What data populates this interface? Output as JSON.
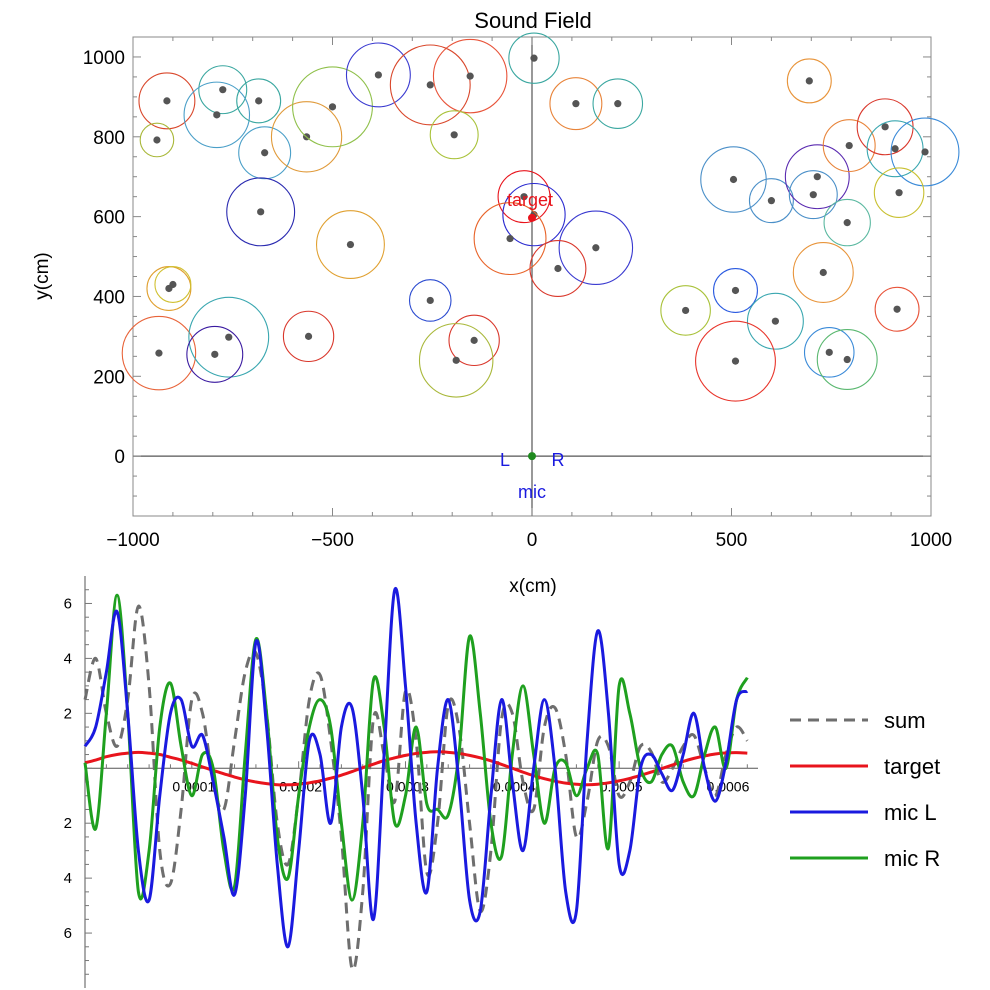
{
  "chart_data": [
    {
      "type": "scatter",
      "title": "Sound Field",
      "xlabel": "x(cm)",
      "ylabel": "y(cm)",
      "xlim": [
        -1000,
        1000
      ],
      "ylim": [
        -150,
        1050
      ],
      "xticks": [
        -1000,
        -500,
        0,
        500,
        1000
      ],
      "yticks": [
        0,
        200,
        400,
        600,
        800,
        1000
      ],
      "tick_labels_x": [
        "−1000",
        "−500",
        "0",
        "500",
        "1000"
      ],
      "tick_labels_y": [
        "0",
        "200",
        "400",
        "600",
        "800",
        "1000"
      ],
      "grid": false,
      "target": {
        "label": "target",
        "x": 0,
        "y": 597,
        "color": "#e8141c"
      },
      "mics": {
        "label": "mic",
        "left_label": "L",
        "right_label": "R",
        "x": 0,
        "y": 0,
        "color": "#1a1adf",
        "dot_color": "#1f8a1f"
      },
      "sources": [
        {
          "x": -915,
          "y": 890,
          "r": 70,
          "color": "#d9472b"
        },
        {
          "x": -940,
          "y": 792,
          "r": 42,
          "color": "#a9b83a"
        },
        {
          "x": -775,
          "y": 918,
          "r": 60,
          "color": "#3aa7a0"
        },
        {
          "x": -790,
          "y": 855,
          "r": 82,
          "color": "#4a9fc8"
        },
        {
          "x": -685,
          "y": 890,
          "r": 55,
          "color": "#3aa7a0"
        },
        {
          "x": -670,
          "y": 760,
          "r": 65,
          "color": "#4a9fc8"
        },
        {
          "x": -565,
          "y": 800,
          "r": 88,
          "color": "#e09a3a"
        },
        {
          "x": -500,
          "y": 875,
          "r": 100,
          "color": "#8fc04a"
        },
        {
          "x": -385,
          "y": 955,
          "r": 80,
          "color": "#3a3ad0"
        },
        {
          "x": -255,
          "y": 930,
          "r": 100,
          "color": "#d9472b"
        },
        {
          "x": -155,
          "y": 952,
          "r": 92,
          "color": "#e8543a"
        },
        {
          "x": -195,
          "y": 805,
          "r": 60,
          "color": "#a9c23a"
        },
        {
          "x": 5,
          "y": 997,
          "r": 63,
          "color": "#3aa7a0"
        },
        {
          "x": 110,
          "y": 883,
          "r": 65,
          "color": "#e8843a"
        },
        {
          "x": 215,
          "y": 883,
          "r": 62,
          "color": "#3aa7a0"
        },
        {
          "x": -680,
          "y": 612,
          "r": 85,
          "color": "#2a2ab0"
        },
        {
          "x": -455,
          "y": 530,
          "r": 85,
          "color": "#e0a030"
        },
        {
          "x": -20,
          "y": 650,
          "r": 65,
          "color": "#e8141c"
        },
        {
          "x": 5,
          "y": 605,
          "r": 78,
          "color": "#2a2ad0"
        },
        {
          "x": -55,
          "y": 545,
          "r": 90,
          "color": "#e8642a"
        },
        {
          "x": 160,
          "y": 522,
          "r": 92,
          "color": "#3a3ad0"
        },
        {
          "x": 65,
          "y": 470,
          "r": 70,
          "color": "#d9372b"
        },
        {
          "x": -910,
          "y": 420,
          "r": 55,
          "color": "#e0a030"
        },
        {
          "x": -900,
          "y": 430,
          "r": 45,
          "color": "#d0c030"
        },
        {
          "x": -255,
          "y": 390,
          "r": 52,
          "color": "#2a4ad0"
        },
        {
          "x": -935,
          "y": 258,
          "r": 92,
          "color": "#e8643a"
        },
        {
          "x": -760,
          "y": 298,
          "r": 100,
          "color": "#3aa7b0"
        },
        {
          "x": -795,
          "y": 255,
          "r": 70,
          "color": "#3a1aa0"
        },
        {
          "x": -560,
          "y": 300,
          "r": 63,
          "color": "#d9372b"
        },
        {
          "x": -145,
          "y": 290,
          "r": 63,
          "color": "#d9372b"
        },
        {
          "x": -190,
          "y": 240,
          "r": 92,
          "color": "#a9b83a"
        },
        {
          "x": 505,
          "y": 693,
          "r": 82,
          "color": "#4a8fc8"
        },
        {
          "x": 600,
          "y": 640,
          "r": 55,
          "color": "#4a8fc8"
        },
        {
          "x": 695,
          "y": 940,
          "r": 55,
          "color": "#e8943a"
        },
        {
          "x": 715,
          "y": 700,
          "r": 80,
          "color": "#5a2ab0"
        },
        {
          "x": 705,
          "y": 655,
          "r": 60,
          "color": "#4a8fc8"
        },
        {
          "x": 795,
          "y": 778,
          "r": 65,
          "color": "#e8843a"
        },
        {
          "x": 885,
          "y": 825,
          "r": 70,
          "color": "#d9372b"
        },
        {
          "x": 910,
          "y": 770,
          "r": 70,
          "color": "#3aa7b0"
        },
        {
          "x": 985,
          "y": 762,
          "r": 85,
          "color": "#3a8ad8"
        },
        {
          "x": 920,
          "y": 660,
          "r": 62,
          "color": "#c8c030"
        },
        {
          "x": 790,
          "y": 585,
          "r": 58,
          "color": "#5ab8a0"
        },
        {
          "x": 730,
          "y": 460,
          "r": 75,
          "color": "#e8943a"
        },
        {
          "x": 510,
          "y": 415,
          "r": 55,
          "color": "#2a5ae0"
        },
        {
          "x": 385,
          "y": 365,
          "r": 62,
          "color": "#a9c23a"
        },
        {
          "x": 610,
          "y": 338,
          "r": 70,
          "color": "#3aa7b0"
        },
        {
          "x": 915,
          "y": 368,
          "r": 55,
          "color": "#e8543a"
        },
        {
          "x": 510,
          "y": 238,
          "r": 100,
          "color": "#e8342a"
        },
        {
          "x": 745,
          "y": 260,
          "r": 62,
          "color": "#3a8ad8"
        },
        {
          "x": 790,
          "y": 242,
          "r": 75,
          "color": "#5ab870"
        }
      ]
    },
    {
      "type": "line",
      "title": "",
      "xlabel": "",
      "ylabel": "",
      "xlim": [
        0,
        0.00063
      ],
      "ylim": [
        -8,
        7
      ],
      "xticks": [
        0.0001,
        0.0002,
        0.0003,
        0.0004,
        0.0005,
        0.0006
      ],
      "yticks": [
        -6,
        -4,
        -2,
        2,
        4,
        6
      ],
      "tick_labels_x": [
        "0.0001",
        "0.0002",
        "0.0003",
        "0.0004",
        "0.0005",
        "0.0006"
      ],
      "tick_labels_y": [
        "6",
        "4",
        "2",
        "2",
        "4",
        "6"
      ],
      "legend": "right",
      "x": [
        0,
        1e-05,
        2e-05,
        3e-05,
        4e-05,
        5e-05,
        6e-05,
        7e-05,
        8e-05,
        9e-05,
        0.0001,
        0.00011,
        0.00012,
        0.00013,
        0.00014,
        0.00015,
        0.00016,
        0.00017,
        0.00018,
        0.00019,
        0.0002,
        0.00021,
        0.00022,
        0.00023,
        0.00024,
        0.00025,
        0.00026,
        0.00027,
        0.00028,
        0.00029,
        0.0003,
        0.00031,
        0.00032,
        0.00033,
        0.00034,
        0.00035,
        0.00036,
        0.00037,
        0.00038,
        0.00039,
        0.0004,
        0.00041,
        0.00042,
        0.00043,
        0.00044,
        0.00045,
        0.00046,
        0.00047,
        0.00048,
        0.00049,
        0.0005,
        0.00051,
        0.00052,
        0.00053,
        0.00054,
        0.00055,
        0.00056,
        0.00057,
        0.00058,
        0.00059,
        0.0006,
        0.00061,
        0.00062
      ],
      "series": [
        {
          "name": "sum",
          "color": "#6e6e6e",
          "dash": true,
          "values": [
            2.5,
            4.0,
            2.0,
            0.8,
            2.5,
            5.9,
            3.0,
            -3.0,
            -4.2,
            -1.5,
            2.5,
            2.0,
            -0.5,
            -1.5,
            1.0,
            3.5,
            4.2,
            2.0,
            -2.0,
            -3.5,
            -1.0,
            2.5,
            3.4,
            1.0,
            -2.5,
            -7.3,
            -4.5,
            1.8,
            0.5,
            -1.2,
            2.8,
            1.0,
            -3.8,
            -2.0,
            2.3,
            1.5,
            -2.0,
            -5.2,
            -3.0,
            1.8,
            2.0,
            -0.5,
            -1.5,
            1.5,
            2.2,
            0.5,
            -2.5,
            -1.2,
            1.0,
            0.8,
            -1.0,
            -0.5,
            0.8,
            0.6,
            -0.5,
            0.0,
            0.8,
            1.2,
            0.0,
            -1.0,
            0.5,
            1.5,
            1.0
          ]
        },
        {
          "name": "target",
          "color": "#e8141c",
          "dash": false,
          "values": [
            0.2,
            0.3,
            0.42,
            0.5,
            0.55,
            0.58,
            0.55,
            0.5,
            0.4,
            0.3,
            0.18,
            0.05,
            -0.08,
            -0.2,
            -0.32,
            -0.42,
            -0.5,
            -0.56,
            -0.6,
            -0.6,
            -0.58,
            -0.53,
            -0.46,
            -0.36,
            -0.25,
            -0.12,
            0.02,
            0.15,
            0.28,
            0.38,
            0.47,
            0.54,
            0.58,
            0.6,
            0.58,
            0.54,
            0.47,
            0.38,
            0.27,
            0.14,
            0.0,
            -0.14,
            -0.27,
            -0.38,
            -0.47,
            -0.54,
            -0.58,
            -0.6,
            -0.58,
            -0.53,
            -0.46,
            -0.37,
            -0.26,
            -0.14,
            -0.01,
            0.12,
            0.25,
            0.36,
            0.45,
            0.52,
            0.56,
            0.57,
            0.55
          ]
        },
        {
          "name": "mic L",
          "color": "#1a1adf",
          "dash": false,
          "values": [
            0.8,
            1.5,
            3.5,
            5.7,
            2.0,
            -3.0,
            -4.8,
            -1.0,
            2.0,
            2.5,
            0.8,
            1.2,
            -0.5,
            -2.5,
            -4.6,
            -1.0,
            4.6,
            1.5,
            -3.5,
            -6.5,
            -3.0,
            1.0,
            0.5,
            -2.0,
            1.5,
            2.2,
            -1.0,
            -5.5,
            0.5,
            6.5,
            3.0,
            -2.0,
            -4.5,
            0.0,
            2.5,
            -0.5,
            -4.8,
            -5.2,
            -1.0,
            2.5,
            -0.5,
            -3.0,
            0.0,
            2.5,
            0.0,
            -4.5,
            -5.2,
            1.0,
            5.0,
            2.0,
            -3.5,
            -3.0,
            0.0,
            0.5,
            -0.2,
            -0.8,
            0.5,
            2.0,
            0.0,
            -1.2,
            0.2,
            2.5,
            2.8
          ]
        },
        {
          "name": "mic R",
          "color": "#1fa01f",
          "dash": false,
          "values": [
            0.2,
            -2.2,
            2.0,
            6.3,
            2.0,
            -4.5,
            -3.0,
            1.5,
            3.1,
            0.8,
            -1.0,
            0.5,
            0.0,
            -3.0,
            -4.3,
            0.5,
            4.7,
            2.0,
            -2.5,
            -4.0,
            -1.0,
            1.5,
            2.5,
            1.5,
            -2.0,
            -4.8,
            -2.0,
            3.2,
            1.5,
            -2.0,
            -1.0,
            1.5,
            -1.3,
            -1.5,
            -1.7,
            0.5,
            4.8,
            2.0,
            -2.0,
            -3.2,
            0.5,
            3.0,
            0.5,
            -2.0,
            0.0,
            0.2,
            -1.0,
            0.0,
            0.5,
            -2.9,
            3.0,
            2.0,
            0.0,
            -0.5,
            0.5,
            0.8,
            -0.5,
            -1.0,
            0.5,
            1.5,
            0.0,
            2.5,
            3.3
          ]
        }
      ]
    }
  ]
}
